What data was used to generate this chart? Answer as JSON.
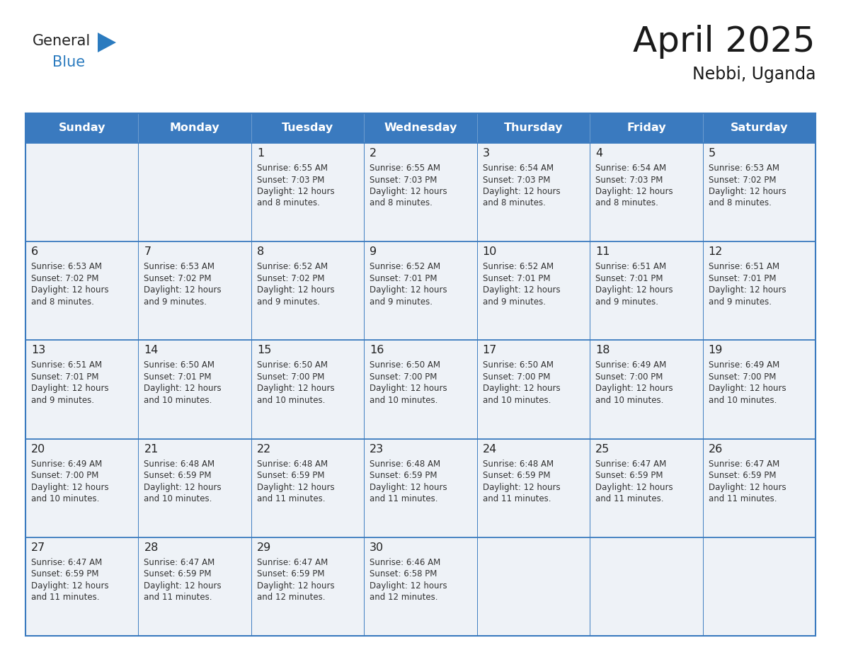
{
  "title": "April 2025",
  "subtitle": "Nebbi, Uganda",
  "days_of_week": [
    "Sunday",
    "Monday",
    "Tuesday",
    "Wednesday",
    "Thursday",
    "Friday",
    "Saturday"
  ],
  "header_bg": "#3a7abf",
  "header_text": "#ffffff",
  "cell_bg": "#eef2f7",
  "cell_bg_empty": "#eef2f7",
  "border_color": "#3a7abf",
  "day_num_color": "#222222",
  "text_color": "#333333",
  "title_color": "#1a1a1a",
  "logo_general_color": "#222222",
  "logo_blue_color": "#2b7bbf",
  "calendar_data": [
    [
      {
        "day": "",
        "sunrise": "",
        "sunset": "",
        "daylight_min": ""
      },
      {
        "day": "",
        "sunrise": "",
        "sunset": "",
        "daylight_min": ""
      },
      {
        "day": "1",
        "sunrise": "6:55 AM",
        "sunset": "7:03 PM",
        "daylight_min": "8 minutes."
      },
      {
        "day": "2",
        "sunrise": "6:55 AM",
        "sunset": "7:03 PM",
        "daylight_min": "8 minutes."
      },
      {
        "day": "3",
        "sunrise": "6:54 AM",
        "sunset": "7:03 PM",
        "daylight_min": "8 minutes."
      },
      {
        "day": "4",
        "sunrise": "6:54 AM",
        "sunset": "7:03 PM",
        "daylight_min": "8 minutes."
      },
      {
        "day": "5",
        "sunrise": "6:53 AM",
        "sunset": "7:02 PM",
        "daylight_min": "8 minutes."
      }
    ],
    [
      {
        "day": "6",
        "sunrise": "6:53 AM",
        "sunset": "7:02 PM",
        "daylight_min": "8 minutes."
      },
      {
        "day": "7",
        "sunrise": "6:53 AM",
        "sunset": "7:02 PM",
        "daylight_min": "9 minutes."
      },
      {
        "day": "8",
        "sunrise": "6:52 AM",
        "sunset": "7:02 PM",
        "daylight_min": "9 minutes."
      },
      {
        "day": "9",
        "sunrise": "6:52 AM",
        "sunset": "7:01 PM",
        "daylight_min": "9 minutes."
      },
      {
        "day": "10",
        "sunrise": "6:52 AM",
        "sunset": "7:01 PM",
        "daylight_min": "9 minutes."
      },
      {
        "day": "11",
        "sunrise": "6:51 AM",
        "sunset": "7:01 PM",
        "daylight_min": "9 minutes."
      },
      {
        "day": "12",
        "sunrise": "6:51 AM",
        "sunset": "7:01 PM",
        "daylight_min": "9 minutes."
      }
    ],
    [
      {
        "day": "13",
        "sunrise": "6:51 AM",
        "sunset": "7:01 PM",
        "daylight_min": "9 minutes."
      },
      {
        "day": "14",
        "sunrise": "6:50 AM",
        "sunset": "7:01 PM",
        "daylight_min": "10 minutes."
      },
      {
        "day": "15",
        "sunrise": "6:50 AM",
        "sunset": "7:00 PM",
        "daylight_min": "10 minutes."
      },
      {
        "day": "16",
        "sunrise": "6:50 AM",
        "sunset": "7:00 PM",
        "daylight_min": "10 minutes."
      },
      {
        "day": "17",
        "sunrise": "6:50 AM",
        "sunset": "7:00 PM",
        "daylight_min": "10 minutes."
      },
      {
        "day": "18",
        "sunrise": "6:49 AM",
        "sunset": "7:00 PM",
        "daylight_min": "10 minutes."
      },
      {
        "day": "19",
        "sunrise": "6:49 AM",
        "sunset": "7:00 PM",
        "daylight_min": "10 minutes."
      }
    ],
    [
      {
        "day": "20",
        "sunrise": "6:49 AM",
        "sunset": "7:00 PM",
        "daylight_min": "10 minutes."
      },
      {
        "day": "21",
        "sunrise": "6:48 AM",
        "sunset": "6:59 PM",
        "daylight_min": "10 minutes."
      },
      {
        "day": "22",
        "sunrise": "6:48 AM",
        "sunset": "6:59 PM",
        "daylight_min": "11 minutes."
      },
      {
        "day": "23",
        "sunrise": "6:48 AM",
        "sunset": "6:59 PM",
        "daylight_min": "11 minutes."
      },
      {
        "day": "24",
        "sunrise": "6:48 AM",
        "sunset": "6:59 PM",
        "daylight_min": "11 minutes."
      },
      {
        "day": "25",
        "sunrise": "6:47 AM",
        "sunset": "6:59 PM",
        "daylight_min": "11 minutes."
      },
      {
        "day": "26",
        "sunrise": "6:47 AM",
        "sunset": "6:59 PM",
        "daylight_min": "11 minutes."
      }
    ],
    [
      {
        "day": "27",
        "sunrise": "6:47 AM",
        "sunset": "6:59 PM",
        "daylight_min": "11 minutes."
      },
      {
        "day": "28",
        "sunrise": "6:47 AM",
        "sunset": "6:59 PM",
        "daylight_min": "11 minutes."
      },
      {
        "day": "29",
        "sunrise": "6:47 AM",
        "sunset": "6:59 PM",
        "daylight_min": "12 minutes."
      },
      {
        "day": "30",
        "sunrise": "6:46 AM",
        "sunset": "6:58 PM",
        "daylight_min": "12 minutes."
      },
      {
        "day": "",
        "sunrise": "",
        "sunset": "",
        "daylight_min": ""
      },
      {
        "day": "",
        "sunrise": "",
        "sunset": "",
        "daylight_min": ""
      },
      {
        "day": "",
        "sunrise": "",
        "sunset": "",
        "daylight_min": ""
      }
    ]
  ]
}
